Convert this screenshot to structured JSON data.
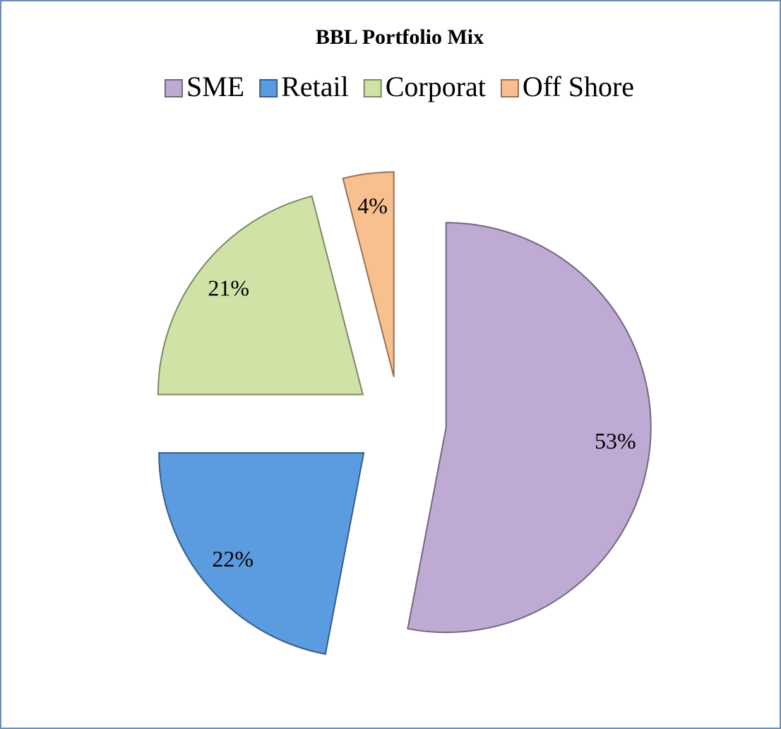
{
  "chart_data": {
    "type": "pie",
    "title": "BBL Portfolio Mix",
    "categories": [
      "SME",
      "Retail",
      "Corporat",
      "Off Shore"
    ],
    "values": [
      53,
      22,
      21,
      4
    ],
    "value_labels": [
      "53%",
      "22%",
      "21%",
      "4%"
    ],
    "colors": [
      "#bfaad4",
      "#5b9be0",
      "#d1e2a6",
      "#f9c08f"
    ],
    "exploded": true,
    "legend": "top"
  }
}
